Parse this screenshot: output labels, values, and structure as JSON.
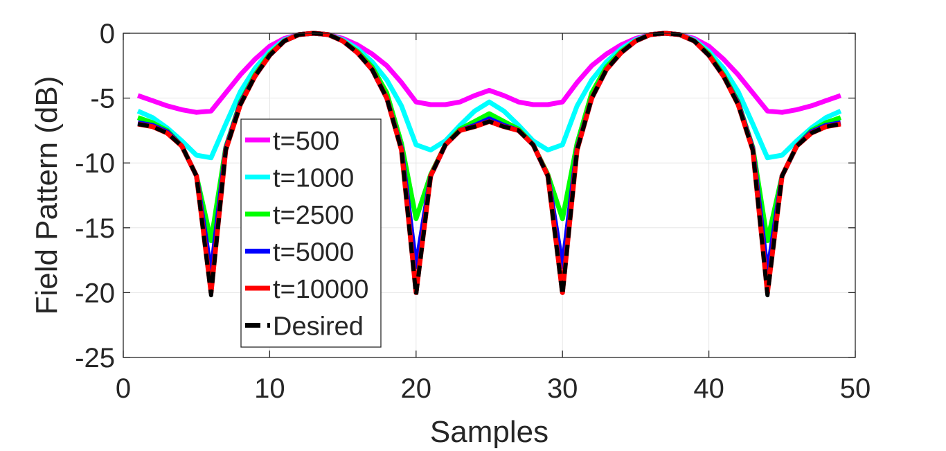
{
  "chart_data": {
    "type": "line",
    "xlabel": "Samples",
    "ylabel": "Field Pattern (dB)",
    "xlim": [
      0,
      50
    ],
    "ylim": [
      -25,
      0
    ],
    "x_ticks": [
      0,
      10,
      20,
      30,
      40,
      50
    ],
    "x_tick_labels": [
      "0",
      "10",
      "20",
      "30",
      "40",
      "50"
    ],
    "y_ticks": [
      0,
      -5,
      -10,
      -15,
      -20,
      -25
    ],
    "y_tick_labels": [
      "0",
      "-5",
      "-10",
      "-15",
      "-20",
      "-25"
    ],
    "grid": true,
    "legend_position": "lower-left",
    "x": [
      1,
      2,
      3,
      4,
      5,
      6,
      7,
      8,
      9,
      10,
      11,
      12,
      13,
      14,
      15,
      16,
      17,
      18,
      19,
      20,
      21,
      22,
      23,
      24,
      25,
      26,
      27,
      28,
      29,
      30,
      31,
      32,
      33,
      34,
      35,
      36,
      37,
      38,
      39,
      40,
      41,
      42,
      43,
      44,
      45,
      46,
      47,
      48,
      49
    ],
    "series": [
      {
        "name": "t=500",
        "color": "#ff00ff",
        "dashed": false,
        "values": [
          -4.8,
          -5.2,
          -5.6,
          -5.9,
          -6.1,
          -6.0,
          -4.6,
          -3.2,
          -2.0,
          -1.0,
          -0.4,
          -0.1,
          0.0,
          -0.1,
          -0.4,
          -0.9,
          -1.6,
          -2.5,
          -3.8,
          -5.3,
          -5.5,
          -5.5,
          -5.3,
          -4.8,
          -4.4,
          -4.8,
          -5.3,
          -5.5,
          -5.5,
          -5.3,
          -3.8,
          -2.5,
          -1.6,
          -0.9,
          -0.4,
          -0.1,
          0.0,
          -0.1,
          -0.4,
          -1.0,
          -2.0,
          -3.2,
          -4.6,
          -6.0,
          -6.1,
          -5.9,
          -5.6,
          -5.2,
          -4.8
        ]
      },
      {
        "name": "t=1000",
        "color": "#00ffff",
        "dashed": false,
        "values": [
          -6.0,
          -6.5,
          -7.3,
          -8.3,
          -9.4,
          -9.6,
          -7.0,
          -4.5,
          -2.7,
          -1.4,
          -0.5,
          -0.1,
          0.0,
          -0.1,
          -0.5,
          -1.2,
          -2.2,
          -3.6,
          -5.6,
          -8.6,
          -9.0,
          -8.3,
          -7.1,
          -6.0,
          -5.3,
          -6.0,
          -7.1,
          -8.3,
          -9.0,
          -8.6,
          -5.6,
          -3.6,
          -2.2,
          -1.2,
          -0.5,
          -0.1,
          0.0,
          -0.1,
          -0.5,
          -1.4,
          -2.7,
          -4.5,
          -7.0,
          -9.6,
          -9.4,
          -8.3,
          -7.3,
          -6.5,
          -6.0
        ]
      },
      {
        "name": "t=2500",
        "color": "#00ff00",
        "dashed": false,
        "values": [
          -6.5,
          -6.9,
          -7.5,
          -8.7,
          -11.0,
          -16.0,
          -8.8,
          -5.3,
          -3.2,
          -1.6,
          -0.6,
          -0.1,
          0.0,
          -0.1,
          -0.6,
          -1.4,
          -2.6,
          -4.6,
          -8.5,
          -14.3,
          -10.9,
          -8.6,
          -7.4,
          -6.8,
          -6.2,
          -6.8,
          -7.4,
          -8.6,
          -10.9,
          -14.3,
          -8.5,
          -4.6,
          -2.6,
          -1.4,
          -0.6,
          -0.1,
          0.0,
          -0.1,
          -0.6,
          -1.6,
          -3.2,
          -5.3,
          -8.8,
          -16.0,
          -11.0,
          -8.7,
          -7.5,
          -6.9,
          -6.5
        ]
      },
      {
        "name": "t=5000",
        "color": "#0000ff",
        "dashed": false,
        "values": [
          -6.9,
          -7.1,
          -7.6,
          -8.7,
          -11.0,
          -18.5,
          -8.9,
          -5.4,
          -3.3,
          -1.7,
          -0.6,
          -0.1,
          0.0,
          -0.1,
          -0.6,
          -1.5,
          -2.8,
          -5.0,
          -8.9,
          -18.0,
          -11.0,
          -8.6,
          -7.5,
          -7.1,
          -6.6,
          -7.1,
          -7.5,
          -8.6,
          -11.0,
          -18.0,
          -8.9,
          -5.0,
          -2.8,
          -1.5,
          -0.6,
          -0.1,
          0.0,
          -0.1,
          -0.6,
          -1.7,
          -3.3,
          -5.4,
          -8.9,
          -18.5,
          -11.0,
          -8.7,
          -7.6,
          -7.1,
          -6.9
        ]
      },
      {
        "name": "t=10000",
        "color": "#ff0000",
        "dashed": false,
        "values": [
          -7.0,
          -7.2,
          -7.7,
          -8.7,
          -11.0,
          -20.0,
          -9.0,
          -5.5,
          -3.3,
          -1.7,
          -0.6,
          -0.1,
          0.0,
          -0.1,
          -0.6,
          -1.5,
          -2.8,
          -5.0,
          -9.0,
          -20.0,
          -11.0,
          -8.6,
          -7.5,
          -7.2,
          -6.8,
          -7.2,
          -7.5,
          -8.6,
          -11.0,
          -20.0,
          -9.0,
          -5.0,
          -2.8,
          -1.5,
          -0.6,
          -0.1,
          0.0,
          -0.1,
          -0.6,
          -1.7,
          -3.3,
          -5.5,
          -9.0,
          -20.0,
          -11.0,
          -8.7,
          -7.7,
          -7.2,
          -7.0
        ]
      },
      {
        "name": "Desired",
        "color": "#000000",
        "dashed": true,
        "values": [
          -7.0,
          -7.2,
          -7.7,
          -8.7,
          -11.0,
          -20.2,
          -9.0,
          -5.5,
          -3.3,
          -1.7,
          -0.6,
          -0.1,
          0.0,
          -0.1,
          -0.6,
          -1.5,
          -2.8,
          -5.0,
          -9.0,
          -20.2,
          -11.0,
          -8.6,
          -7.5,
          -7.2,
          -6.8,
          -7.2,
          -7.5,
          -8.6,
          -11.0,
          -20.2,
          -9.0,
          -5.0,
          -2.8,
          -1.5,
          -0.6,
          -0.1,
          0.0,
          -0.1,
          -0.6,
          -1.7,
          -3.3,
          -5.5,
          -9.0,
          -20.2,
          -11.0,
          -8.7,
          -7.7,
          -7.2,
          -7.0
        ]
      }
    ]
  }
}
